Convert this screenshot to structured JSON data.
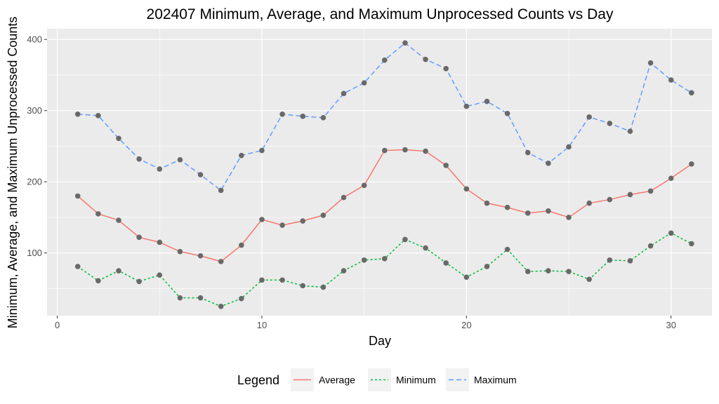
{
  "chart_data": {
    "type": "line",
    "title": "202407 Minimum, Average, and Maximum Unprocessed Counts vs Day",
    "xlabel": "Day",
    "ylabel": "Minimum, Average, and Maximum Unprocessed Counts",
    "xlim": [
      -0.5,
      32.0
    ],
    "ylim": [
      12,
      415
    ],
    "x_ticks": [
      0,
      10,
      20,
      30
    ],
    "y_ticks": [
      100,
      200,
      300,
      400
    ],
    "grid": true,
    "legend": {
      "title": "Legend",
      "position": "bottom",
      "entries": [
        "Average",
        "Minimum",
        "Maximum"
      ]
    },
    "x": [
      1,
      2,
      3,
      4,
      5,
      6,
      7,
      8,
      9,
      10,
      11,
      12,
      13,
      14,
      15,
      16,
      17,
      18,
      19,
      20,
      21,
      22,
      23,
      24,
      25,
      26,
      27,
      28,
      29,
      30,
      31
    ],
    "series": [
      {
        "name": "Average",
        "color": "#F8766D",
        "dash": "solid",
        "values": [
          180,
          155,
          146,
          122,
          115,
          102,
          96,
          88,
          111,
          147,
          139,
          145,
          153,
          178,
          195,
          244,
          245,
          243,
          223,
          190,
          170,
          164,
          156,
          159,
          150,
          170,
          175,
          182,
          187,
          205,
          225
        ]
      },
      {
        "name": "Minimum",
        "color": "#00BA38",
        "dash": "dotted",
        "values": [
          81,
          61,
          75,
          60,
          69,
          37,
          37,
          25,
          36,
          62,
          62,
          54,
          52,
          75,
          90,
          92,
          119,
          107,
          86,
          66,
          81,
          105,
          74,
          75,
          74,
          63,
          90,
          89,
          110,
          128,
          113
        ]
      },
      {
        "name": "Maximum",
        "color": "#619CFF",
        "dash": "dashed",
        "values": [
          295,
          293,
          261,
          232,
          218,
          231,
          210,
          188,
          237,
          244,
          295,
          292,
          290,
          324,
          339,
          371,
          395,
          372,
          359,
          306,
          313,
          296,
          241,
          226,
          249,
          291,
          282,
          271,
          367,
          343,
          325
        ]
      }
    ],
    "point_color": "#696969",
    "panel_color": "#EBEBEB"
  }
}
